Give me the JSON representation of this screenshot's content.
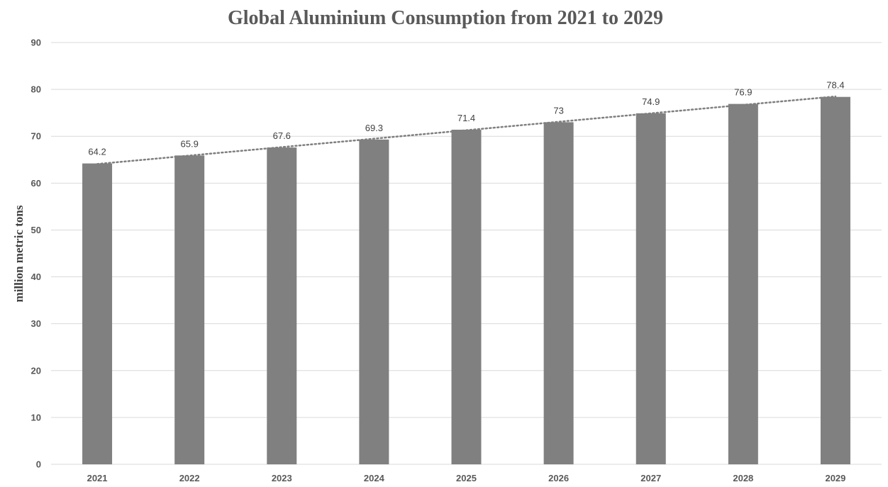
{
  "chart_data": {
    "type": "bar",
    "title": "Global Aluminium Consumption from 2021 to 2029",
    "xlabel": "",
    "ylabel": "million metric tons",
    "categories": [
      "2021",
      "2022",
      "2023",
      "2024",
      "2025",
      "2026",
      "2027",
      "2028",
      "2029"
    ],
    "series": [
      {
        "values": [
          64.2,
          65.9,
          67.6,
          69.3,
          71.4,
          73,
          74.9,
          76.9,
          78.4
        ],
        "data_labels": [
          "64.2",
          "65.9",
          "67.6",
          "69.3",
          "71.4",
          "73",
          "74.9",
          "76.9",
          "78.4"
        ]
      }
    ],
    "ylim": [
      0,
      90
    ],
    "yticks": [
      0,
      10,
      20,
      30,
      40,
      50,
      60,
      70,
      80,
      90
    ],
    "ytick_labels": [
      "0",
      "10",
      "20",
      "30",
      "40",
      "50",
      "60",
      "70",
      "80",
      "90"
    ],
    "grid": true,
    "legend": "none",
    "trendline": {
      "type": "linear",
      "style": "dotted",
      "color": "#7f7f7f"
    },
    "colors": {
      "bar": "#808080",
      "grid": "#d9d9d9",
      "title": "#595959"
    }
  }
}
